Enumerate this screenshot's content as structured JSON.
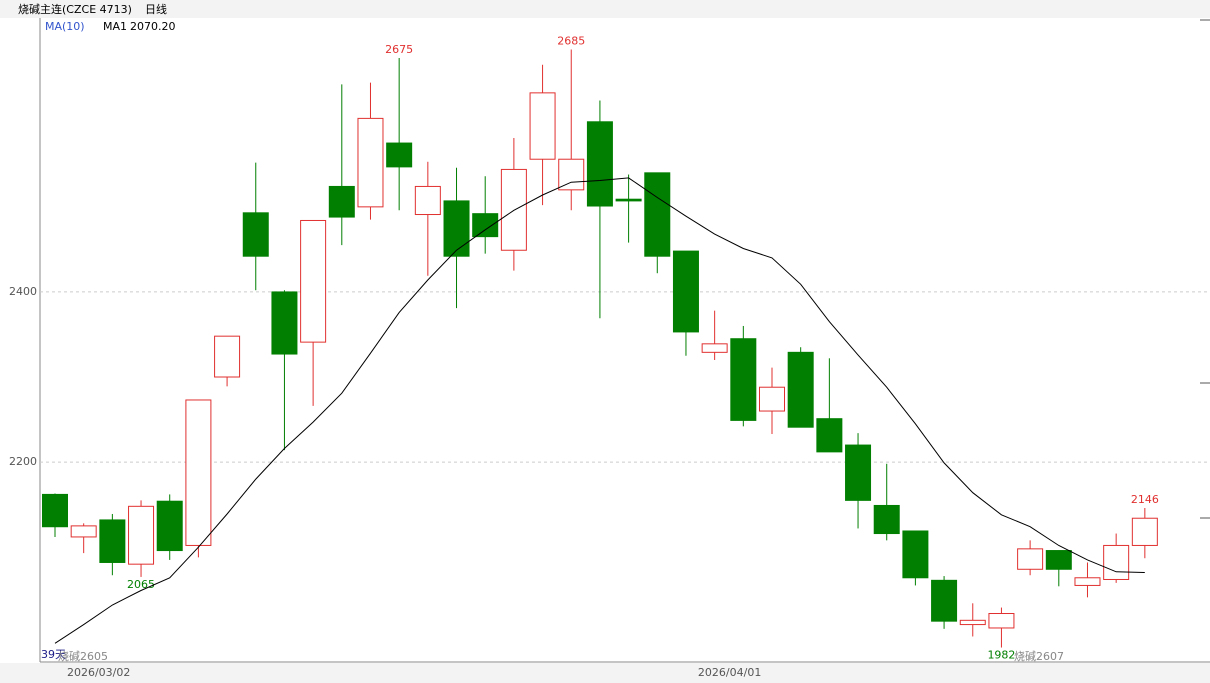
{
  "chart_data": {
    "type": "candlestick",
    "title": "烧碱主连(CZCE 4713)",
    "period": "日线",
    "categories": [
      null,
      "2026/03/02",
      null,
      null,
      null,
      null,
      null,
      null,
      null,
      null,
      null,
      null,
      null,
      null,
      null,
      null,
      null,
      null,
      null,
      null,
      null,
      null,
      null,
      "2026/04/01",
      null,
      null,
      null,
      null,
      null,
      null,
      null,
      null,
      null,
      null,
      null,
      null,
      null,
      null,
      null
    ],
    "open": [
      2162,
      2112,
      2132,
      2080,
      2154,
      2102,
      2300,
      2493,
      2400,
      2341,
      2524,
      2500,
      2575,
      2491,
      2507,
      2492,
      2449,
      2556,
      2520,
      2600,
      2509,
      2540,
      2448,
      2329,
      2345,
      2260,
      2329,
      2251,
      2220,
      2149,
      2119,
      2061,
      2009,
      2005,
      2074,
      2096,
      2055,
      2062,
      2102
    ],
    "high": [
      2163,
      2128,
      2139,
      2155,
      2162,
      2273,
      2348,
      2552,
      2402,
      2484,
      2644,
      2646,
      2675,
      2553,
      2546,
      2536,
      2581,
      2667,
      2685,
      2625,
      2538,
      2540,
      2448,
      2378,
      2360,
      2311,
      2335,
      2322,
      2234,
      2198,
      2119,
      2066,
      2034,
      2029,
      2108,
      2096,
      2082,
      2116,
      2146
    ],
    "low": [
      2112,
      2093,
      2067,
      2065,
      2085,
      2088,
      2289,
      2402,
      2214,
      2266,
      2455,
      2485,
      2496,
      2419,
      2381,
      2445,
      2425,
      2502,
      2496,
      2369,
      2458,
      2422,
      2325,
      2320,
      2242,
      2233,
      2241,
      2212,
      2122,
      2108,
      2055,
      2004,
      1995,
      1982,
      2067,
      2054,
      2041,
      2058,
      2087
    ],
    "close": [
      2124,
      2125,
      2082,
      2148,
      2096,
      2273,
      2348,
      2442,
      2327,
      2484,
      2488,
      2604,
      2547,
      2524,
      2442,
      2465,
      2544,
      2634,
      2556,
      2501,
      2507,
      2442,
      2353,
      2339,
      2249,
      2288,
      2241,
      2212,
      2155,
      2116,
      2064,
      2013,
      2014,
      2022,
      2098,
      2074,
      2064,
      2102,
      2134
    ],
    "high_labels": [
      null,
      null,
      null,
      null,
      null,
      null,
      null,
      null,
      null,
      null,
      null,
      null,
      "2675",
      null,
      null,
      null,
      null,
      null,
      "2685",
      null,
      null,
      null,
      null,
      null,
      null,
      null,
      null,
      null,
      null,
      null,
      null,
      null,
      null,
      null,
      null,
      null,
      null,
      null,
      "2146"
    ],
    "low_labels": [
      null,
      null,
      null,
      "2065",
      null,
      null,
      null,
      null,
      null,
      null,
      null,
      null,
      null,
      null,
      null,
      null,
      null,
      null,
      null,
      null,
      null,
      null,
      null,
      null,
      null,
      null,
      null,
      null,
      null,
      null,
      null,
      null,
      null,
      "1982",
      null,
      null,
      null,
      null,
      null
    ],
    "up_color": "#e0302f",
    "down_color": "#007f00",
    "ma": {
      "indicator": "MA(10)",
      "name": "MA1",
      "last_label": "2070.20",
      "color": "#000000",
      "values": [
        1987,
        2009,
        2032,
        2049,
        2064,
        2100,
        2139,
        2180,
        2216,
        2247,
        2281,
        2328,
        2376,
        2414,
        2449,
        2473,
        2496,
        2514,
        2529,
        2531,
        2534,
        2511,
        2489,
        2468,
        2451,
        2440,
        2409,
        2365,
        2326,
        2288,
        2245,
        2199,
        2164,
        2138,
        2124,
        2102,
        2085,
        2071,
        2070.2
      ]
    },
    "ylim": [
      1965,
      2722
    ],
    "yticks": [
      2200,
      2400
    ],
    "grid": true,
    "count_label": "39天",
    "left_contract": "烧碱2605",
    "right_contract": "烧碱2607"
  }
}
